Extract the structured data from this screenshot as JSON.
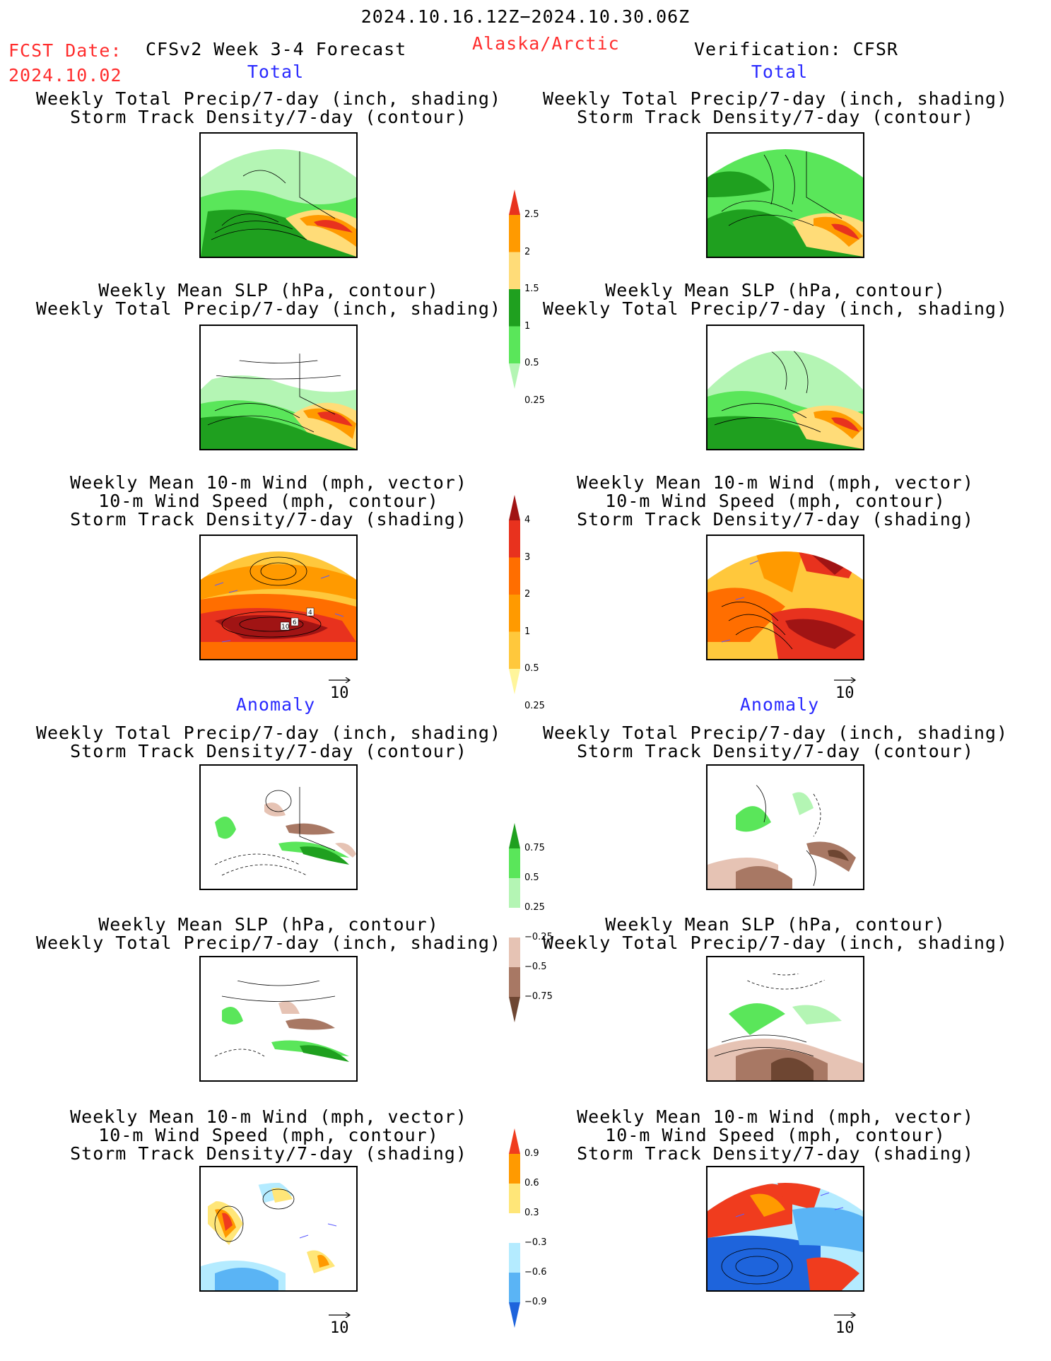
{
  "header": {
    "date_range": "2024.10.16.12Z−2024.10.30.06Z",
    "fcst_label": "FCST Date:",
    "fcst_date": "2024.10.02",
    "model": "CFSv2 Week 3-4 Forecast",
    "region": "Alaska/Arctic",
    "verification": "Verification: CFSR"
  },
  "sections": {
    "total_left": "Total",
    "total_right": "Total",
    "anomaly_left": "Anomaly",
    "anomaly_right": "Anomaly"
  },
  "titles": {
    "precip_track": [
      "Weekly Total Precip/7-day (inch, shading)",
      "Storm Track Density/7-day (contour)"
    ],
    "slp_precip": [
      "Weekly Mean SLP (hPa, contour)",
      "Weekly Total Precip/7-day (inch, shading)"
    ],
    "wind_track": [
      "Weekly Mean 10-m Wind (mph, vector)",
      "10-m Wind Speed (mph, contour)",
      "Storm Track Density/7-day (shading)"
    ]
  },
  "vector_ref": "10",
  "map_labels": [
    "4",
    "6",
    "10"
  ],
  "colorbars": {
    "precip_total": {
      "labels": [
        "2.5",
        "2",
        "1.5",
        "1",
        "0.5",
        "0.25"
      ],
      "colors": [
        "#e8321e",
        "#ff9a00",
        "#ffdc78",
        "#1fa01f",
        "#5ae65a",
        "#b4f5b4"
      ]
    },
    "track_total": {
      "labels": [
        "4",
        "3",
        "2",
        "1",
        "0.5",
        "0.25"
      ],
      "colors": [
        "#a01414",
        "#e8321e",
        "#ff6e00",
        "#ff9a00",
        "#ffc83c",
        "#fff59b"
      ]
    },
    "precip_anom": {
      "labels": [
        "0.75",
        "0.5",
        "0.25",
        "−0.25",
        "−0.5",
        "−0.75"
      ],
      "colors": [
        "#1fa01f",
        "#5ae65a",
        "#b4f5b4",
        "#ffffff",
        "#e6c3b4",
        "#a87864",
        "#6e4632"
      ]
    },
    "track_anom": {
      "labels": [
        "0.9",
        "0.6",
        "0.3",
        "−0.3",
        "−0.6",
        "−0.9"
      ],
      "colors": [
        "#f03c1e",
        "#ff9a00",
        "#ffe678",
        "#ffffff",
        "#b4ebff",
        "#5ab4f5",
        "#1e64dc"
      ]
    }
  }
}
